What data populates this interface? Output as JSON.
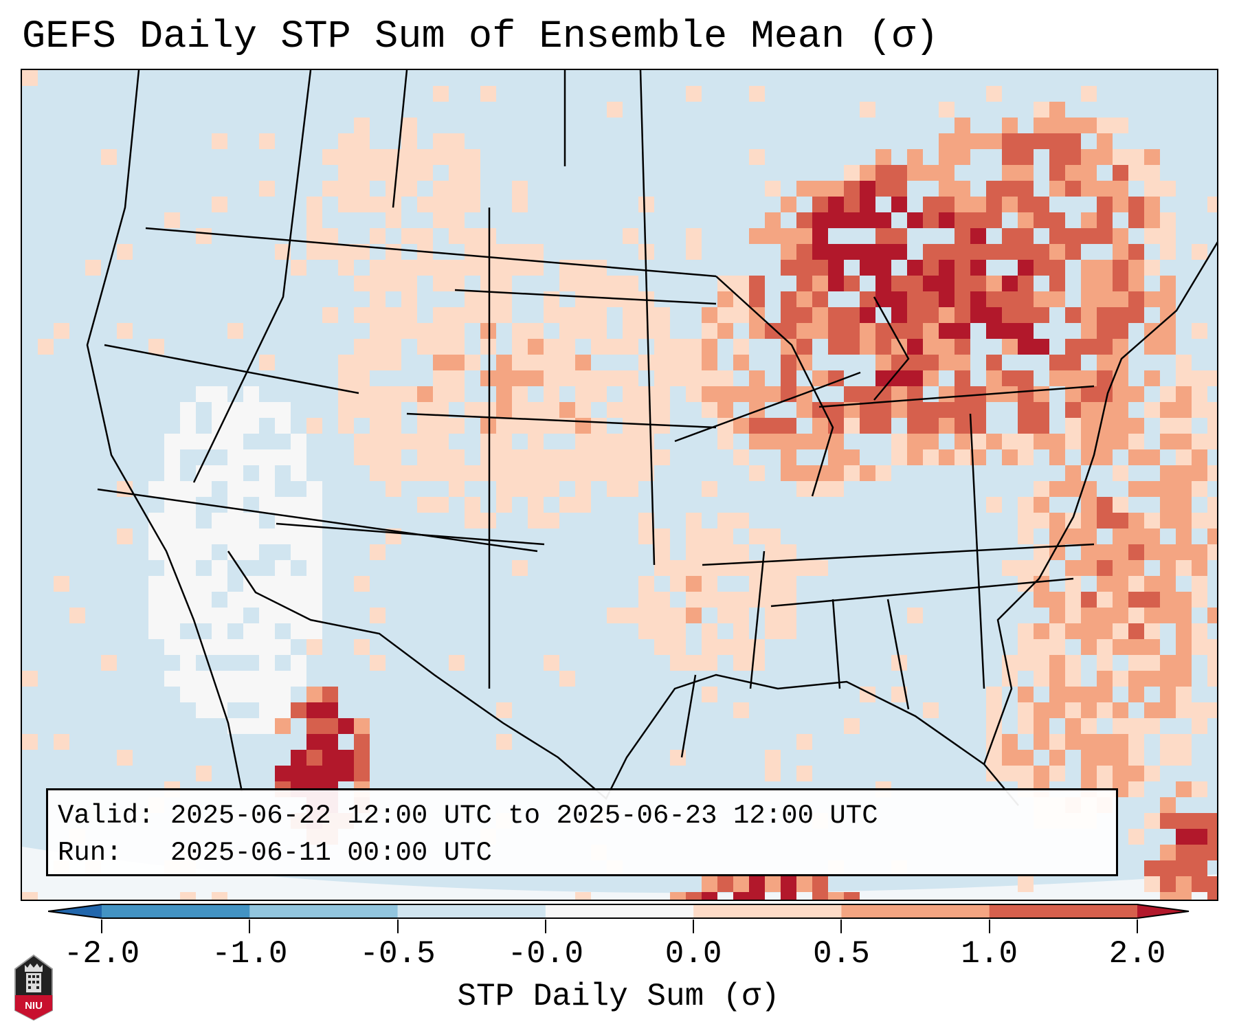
{
  "title": "GEFS Daily STP Sum of Ensemble Mean (σ)",
  "info": {
    "valid_line": "Valid: 2025-06-22 12:00 UTC to 2025-06-23 12:00 UTC",
    "run_line": "Run:   2025-06-11 00:00 UTC"
  },
  "colorbar": {
    "label": "STP Daily Sum (σ)",
    "tick_labels": [
      "-2.0",
      "-1.0",
      "-0.5",
      "-0.0",
      "0.0",
      "0.5",
      "1.0",
      "2.0"
    ],
    "colors": [
      "#2166ac",
      "#4393c3",
      "#92c5de",
      "#d1e5f0",
      "#f7f7f7",
      "#fddbc7",
      "#f4a582",
      "#d6604d",
      "#b2182b"
    ]
  },
  "logo": {
    "text": "NIU"
  }
}
